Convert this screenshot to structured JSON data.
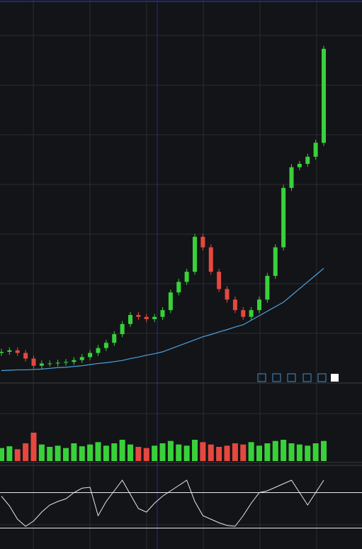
{
  "chart_data": [
    {
      "type": "candlestick",
      "open": [
        8.0,
        8.3,
        8.7,
        8.0,
        6.5,
        4.6,
        5.2,
        5.2,
        5.4,
        5.6,
        6.1,
        6.9,
        8.0,
        9.3,
        10.7,
        13.0,
        15.7,
        18.1,
        17.6,
        17.0,
        17.6,
        19.4,
        24.1,
        26.9,
        29.6,
        38.9,
        36.1,
        29.6,
        25.0,
        22.2,
        19.4,
        17.6,
        19.4,
        22.2,
        28.5,
        36.1,
        51.9,
        57.4,
        58.3,
        60.2,
        63.9
      ],
      "high": [
        9.1,
        9.5,
        9.5,
        8.8,
        7.3,
        6.0,
        6.0,
        6.2,
        6.4,
        6.9,
        7.7,
        8.8,
        10.1,
        11.5,
        13.8,
        16.5,
        18.9,
        18.9,
        18.4,
        18.4,
        20.2,
        24.9,
        27.7,
        30.4,
        39.7,
        39.7,
        36.9,
        30.4,
        25.8,
        23.0,
        20.2,
        20.2,
        23.0,
        29.3,
        36.9,
        52.7,
        58.2,
        59.1,
        61.0,
        64.7,
        89.7
      ],
      "low": [
        7.2,
        7.5,
        7.2,
        5.7,
        3.8,
        3.8,
        4.4,
        4.4,
        4.6,
        4.8,
        5.3,
        6.1,
        7.2,
        8.5,
        9.9,
        12.2,
        14.9,
        16.8,
        16.2,
        16.2,
        16.8,
        18.6,
        23.3,
        26.1,
        28.8,
        35.3,
        28.8,
        24.2,
        21.4,
        18.6,
        16.8,
        16.8,
        18.6,
        21.4,
        27.7,
        35.3,
        51.1,
        56.6,
        57.5,
        59.4,
        63.1
      ],
      "close": [
        8.3,
        8.7,
        8.0,
        6.5,
        4.6,
        5.2,
        5.2,
        5.4,
        5.6,
        6.1,
        6.9,
        8.0,
        9.3,
        10.7,
        13.0,
        15.7,
        18.1,
        17.6,
        17.0,
        17.6,
        19.4,
        24.1,
        26.9,
        29.6,
        38.9,
        36.1,
        29.6,
        25.0,
        22.2,
        19.4,
        17.6,
        19.4,
        22.2,
        28.5,
        36.1,
        51.9,
        57.4,
        58.3,
        60.2,
        63.9,
        88.9
      ],
      "up_color": "#39d13a",
      "down_color": "#e5483f",
      "ma": {
        "color": "#4aa3df",
        "values": [
          3.3,
          3.4,
          3.5,
          3.5,
          3.6,
          3.7,
          3.9,
          4.1,
          4.2,
          4.4,
          4.6,
          4.9,
          5.2,
          5.4,
          5.7,
          6.0,
          6.5,
          6.9,
          7.4,
          7.8,
          8.3,
          9.1,
          9.9,
          10.7,
          11.5,
          12.3,
          12.9,
          13.6,
          14.2,
          14.9,
          15.5,
          16.7,
          17.9,
          19.1,
          20.3,
          21.5,
          23.3,
          25.1,
          26.9,
          28.7,
          30.5
        ]
      },
      "ylim": [
        0,
        100
      ]
    },
    {
      "type": "bar",
      "values": [
        22,
        25,
        20,
        30,
        48,
        28,
        24,
        26,
        22,
        30,
        25,
        28,
        32,
        26,
        30,
        36,
        28,
        24,
        22,
        26,
        30,
        34,
        28,
        26,
        36,
        32,
        28,
        24,
        26,
        30,
        28,
        32,
        26,
        30,
        34,
        36,
        30,
        28,
        26,
        30,
        34
      ],
      "ylim": [
        0,
        60
      ]
    },
    {
      "type": "line",
      "values": [
        66,
        55,
        40,
        32,
        38,
        48,
        56,
        60,
        63,
        70,
        75,
        76,
        44,
        60,
        72,
        84,
        68,
        52,
        48,
        58,
        66,
        72,
        78,
        84,
        60,
        44,
        40,
        36,
        33,
        32,
        44,
        58,
        70,
        72,
        76,
        80,
        84,
        70,
        56,
        70,
        84
      ],
      "color": "#e8e8e8",
      "levels": [
        70,
        30
      ],
      "ylim": [
        0,
        100
      ]
    }
  ]
}
